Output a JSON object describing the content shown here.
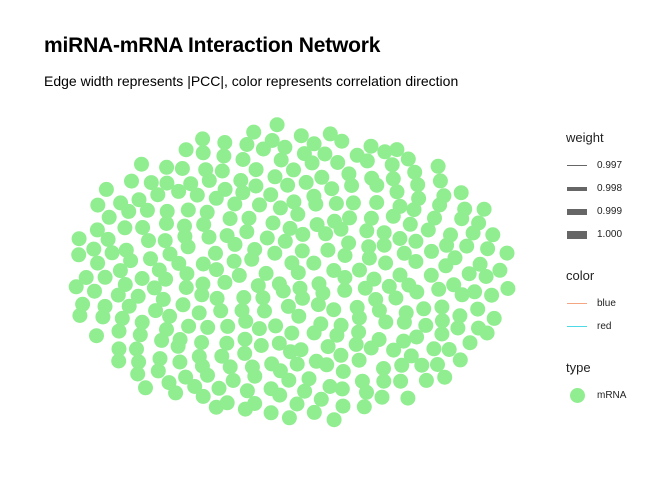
{
  "chart_data": {
    "type": "network",
    "title": "miRNA-mRNA Interaction Network",
    "subtitle": "Edge width represents |PCC|, color represents correlation direction",
    "layout": "ellipse of isolated nodes",
    "node_count": 360,
    "node_type": "mRNA",
    "node_color": "#90ee90",
    "legends": {
      "weight": {
        "title": "weight",
        "entries": [
          {
            "label": "0.997",
            "value": 0.997
          },
          {
            "label": "0.998",
            "value": 0.998
          },
          {
            "label": "0.999",
            "value": 0.999
          },
          {
            "label": "1.000",
            "value": 1.0
          }
        ],
        "color": "#666666"
      },
      "color": {
        "title": "color",
        "entries": [
          {
            "label": "blue",
            "color": "#f4a582"
          },
          {
            "label": "red",
            "color": "#4dd9e6"
          }
        ]
      },
      "type": {
        "title": "type",
        "entries": [
          {
            "label": "mRNA",
            "color": "#90ee90"
          }
        ]
      }
    }
  }
}
